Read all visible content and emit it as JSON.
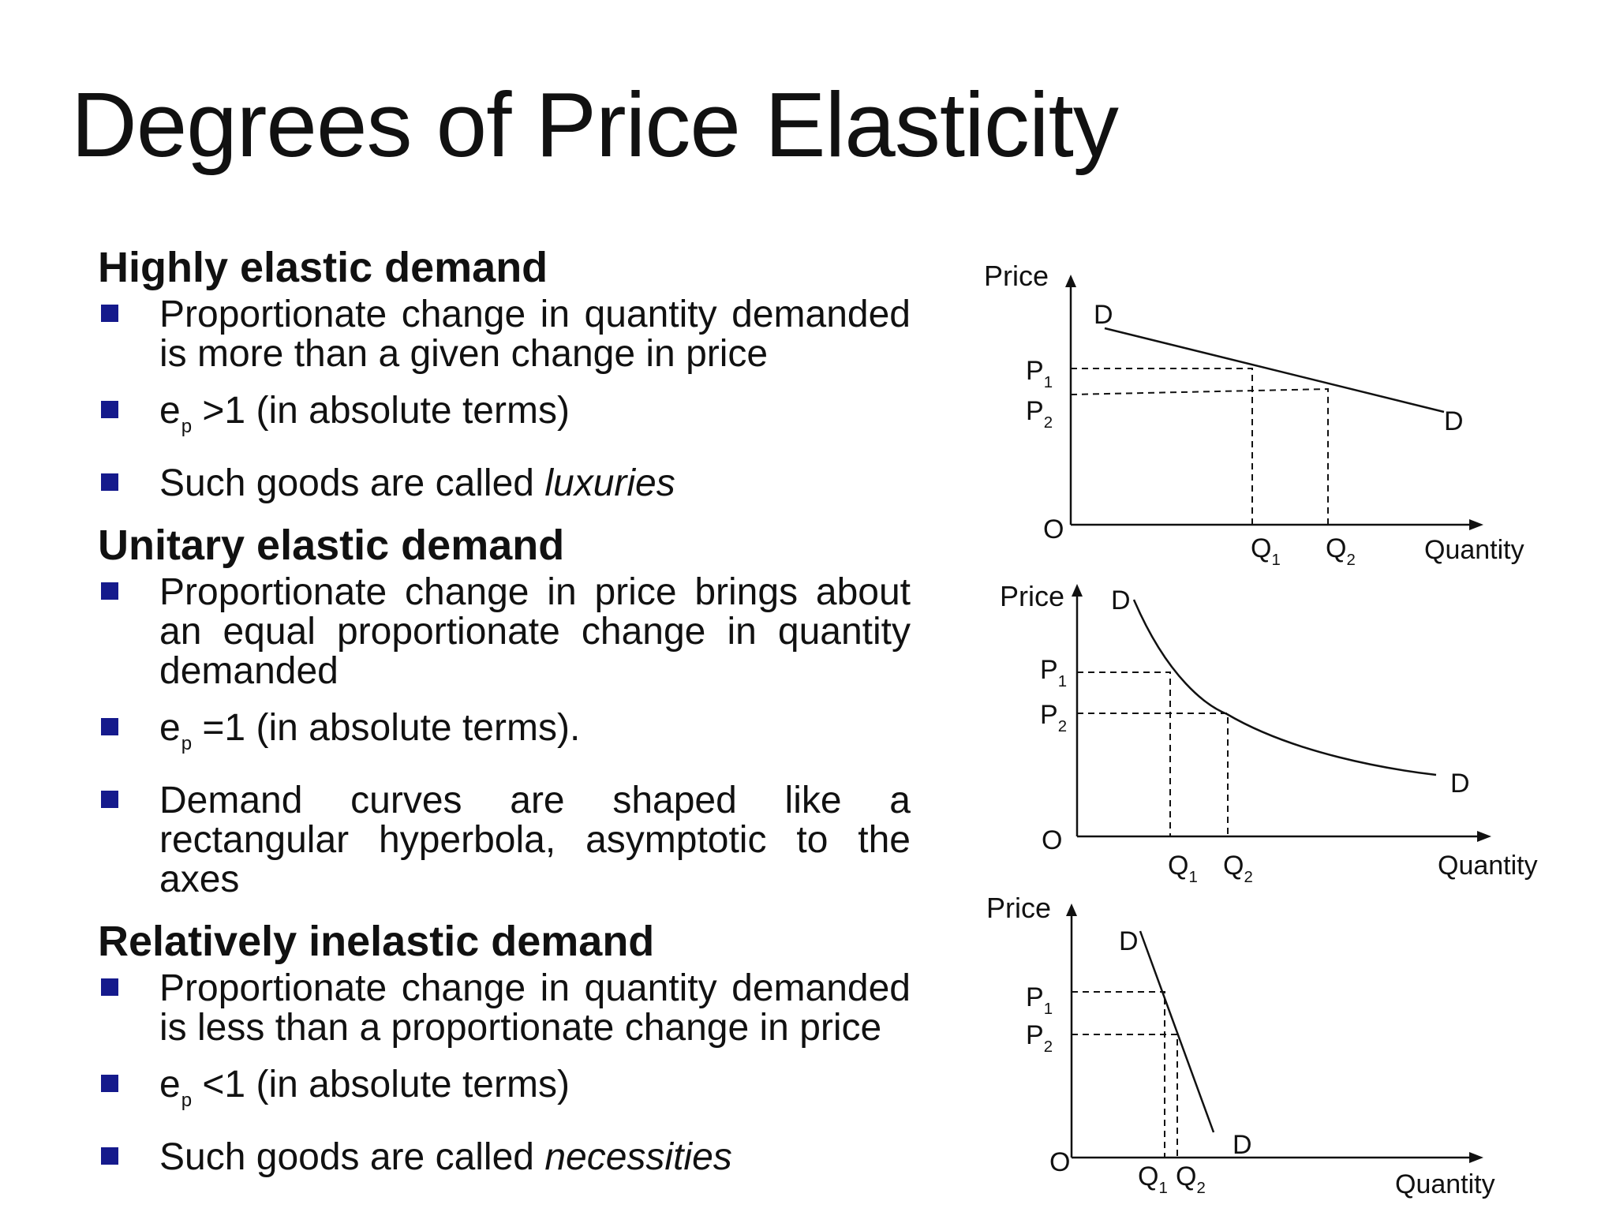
{
  "slide": {
    "title": "Degrees of Price Elasticity",
    "sections": [
      {
        "heading": "Highly elastic demand",
        "bullets": [
          {
            "text": "Proportionate change in quantity demanded is more than a given change in price"
          },
          {
            "pre": "e",
            "sub": "p",
            "post": " >1 (in absolute terms)"
          },
          {
            "pre": "Such goods are called ",
            "italic": "luxuries"
          }
        ]
      },
      {
        "heading": "Unitary elastic demand",
        "bullets": [
          {
            "text": "Proportionate change in price brings about an equal proportionate change in quantity demanded"
          },
          {
            "pre": "e",
            "sub": "p",
            "post": " =1 (in absolute terms)."
          },
          {
            "text": "Demand curves are shaped like a rectangular hyperbola, asymptotic to the axes"
          }
        ]
      },
      {
        "heading": "Relatively inelastic demand",
        "bullets": [
          {
            "text": "Proportionate change in quantity demanded is less than a proportionate change in price"
          },
          {
            "pre": "e",
            "sub": "p",
            "post": " <1 (in absolute terms)"
          },
          {
            "pre": "Such goods are called ",
            "italic": "necessities"
          }
        ]
      }
    ]
  },
  "chart_data": [
    {
      "type": "line",
      "title": "",
      "xlabel": "Quantity",
      "ylabel": "Price",
      "origin_label": "O",
      "curve_label": "D",
      "curve_shape": "linear, shallow slope",
      "price_labels": [
        {
          "main": "P",
          "sub": "1"
        },
        {
          "main": "P",
          "sub": "2"
        }
      ],
      "quantity_labels": [
        {
          "main": "Q",
          "sub": "1"
        },
        {
          "main": "Q",
          "sub": "2"
        }
      ],
      "guides": "dashed"
    },
    {
      "type": "line",
      "title": "",
      "xlabel": "Quantity",
      "ylabel": "Price",
      "origin_label": "O",
      "curve_label": "D",
      "curve_shape": "rectangular hyperbola",
      "price_labels": [
        {
          "main": "P",
          "sub": "1"
        },
        {
          "main": "P",
          "sub": "2"
        }
      ],
      "quantity_labels": [
        {
          "main": "Q",
          "sub": "1"
        },
        {
          "main": "Q",
          "sub": "2"
        }
      ],
      "guides": "dashed"
    },
    {
      "type": "line",
      "title": "",
      "xlabel": "Quantity",
      "ylabel": "Price",
      "origin_label": "O",
      "curve_label": "D",
      "curve_shape": "linear, steep slope",
      "price_labels": [
        {
          "main": "P",
          "sub": "1"
        },
        {
          "main": "P",
          "sub": "2"
        }
      ],
      "quantity_labels": [
        {
          "main": "Q",
          "sub": "1"
        },
        {
          "main": "Q",
          "sub": "2"
        }
      ],
      "guides": "dashed"
    }
  ],
  "style": {
    "marker_color": "#151a8c",
    "text_color": "#111111",
    "background": "#ffffff"
  }
}
